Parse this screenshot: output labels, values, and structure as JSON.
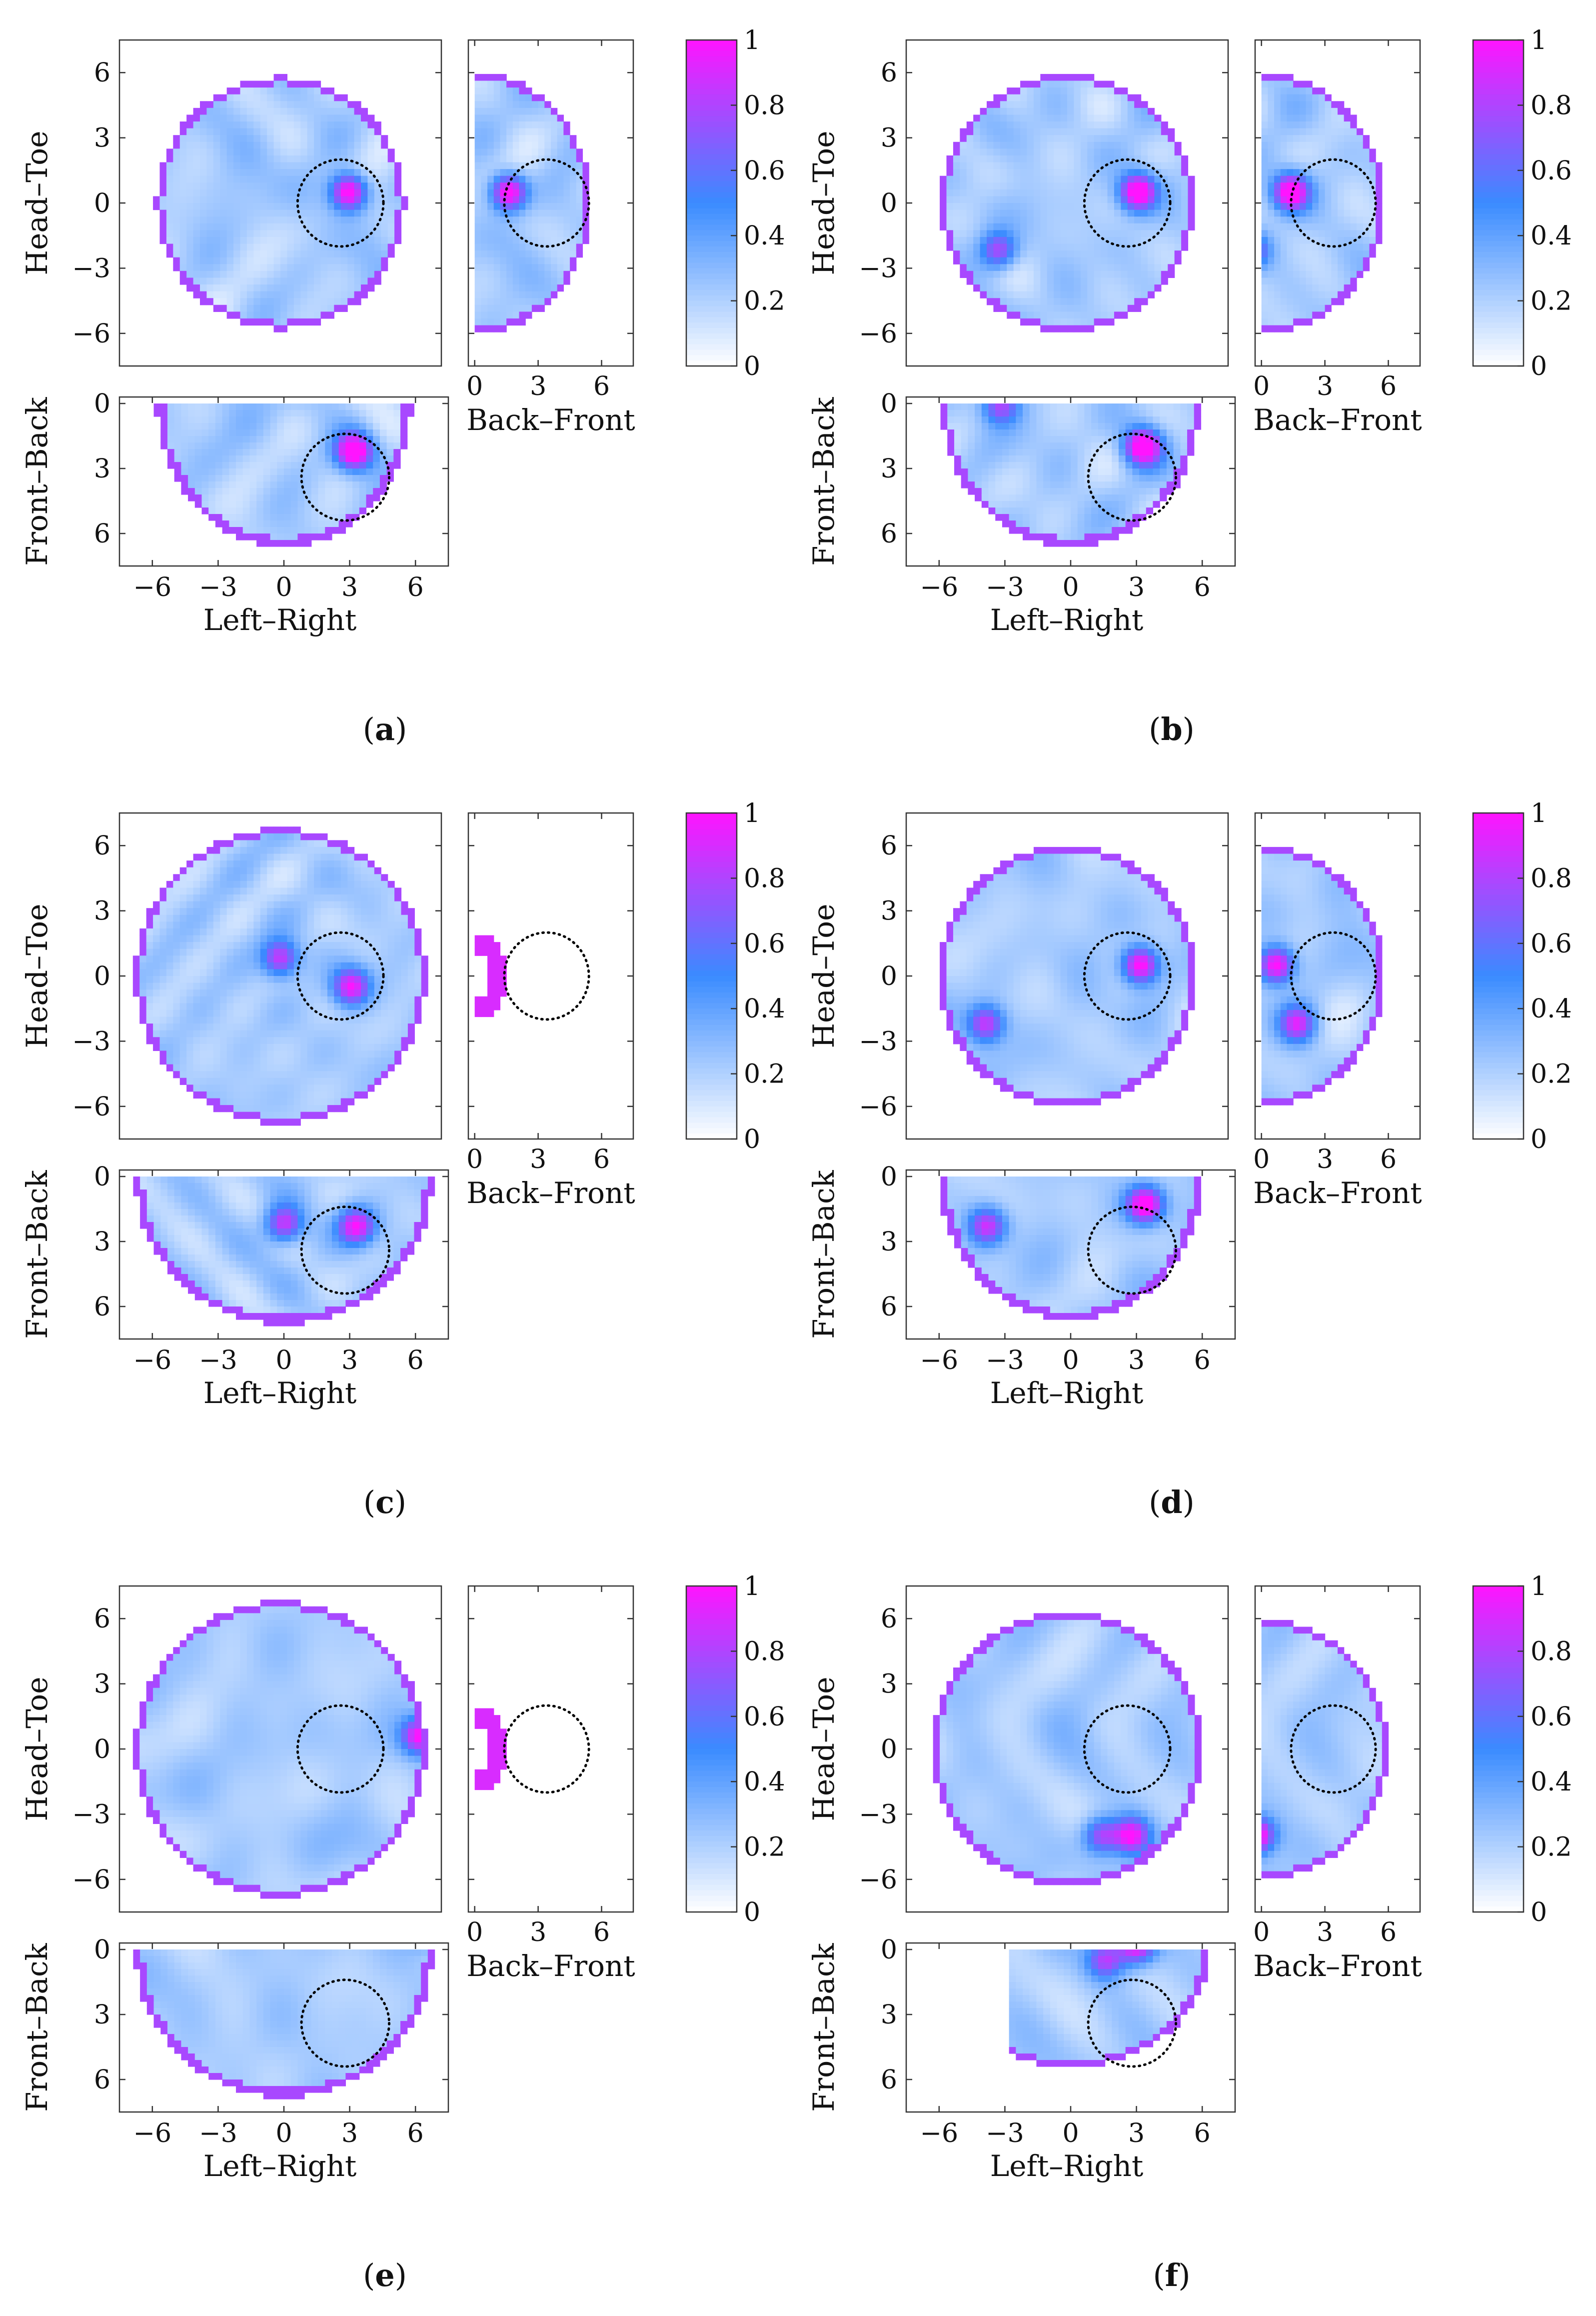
{
  "colors": {
    "low": "#ffffff",
    "mid": "#3a8bff",
    "high": "#ff14ff",
    "boundary": "#7752ff",
    "frame": "#333333"
  },
  "chart_data": {
    "type": "heatmap",
    "description_units": "cm",
    "view_labels": {
      "head_toe_ylabel": "Head–Toe",
      "back_front_xlabel": "Back–Front",
      "front_back_ylabel": "Front–Back",
      "left_right_xlabel": "Left–Right"
    },
    "axes": {
      "left_right_ticks": [
        "−6",
        "−3",
        "0",
        "3",
        "6"
      ],
      "head_toe_ticks": [
        "6",
        "3",
        "0",
        "−3",
        "−6"
      ],
      "back_front_ticks": [
        "0",
        "3",
        "6"
      ],
      "front_back_ticks": [
        "0",
        "3",
        "6"
      ],
      "lr_range": [
        -7.5,
        7.5
      ],
      "ht_range": [
        -7.5,
        7.5
      ],
      "bf_range": [
        -0.3,
        7.5
      ],
      "fb_range": [
        -0.3,
        7.5
      ]
    },
    "colorbar": {
      "ticks": [
        "1",
        "0.8",
        "0.6",
        "0.4",
        "0.2",
        "0"
      ],
      "range": [
        0,
        1
      ]
    },
    "target_marker": {
      "lr": 2.8,
      "ht": 0.0,
      "depth": 3.4,
      "radius": 2.0,
      "style": "dotted circle"
    },
    "panels": [
      {
        "label": "(a)",
        "letter": "a",
        "axial_radius": 5.8,
        "bf_max": 5.5,
        "fb_max": 6.6,
        "side_mode": "half",
        "blob_seed": 11,
        "hotspots": [
          {
            "lr": 3.2,
            "ht": 0.5,
            "depth": 3.9,
            "v": 0.95
          }
        ]
      },
      {
        "label": "(b)",
        "letter": "b",
        "axial_radius": 5.9,
        "bf_max": 5.8,
        "fb_max": 6.6,
        "side_mode": "half",
        "blob_seed": 23,
        "hotspots": [
          {
            "lr": 3.3,
            "ht": 0.5,
            "depth": 3.7,
            "v": 0.95
          },
          {
            "lr": -3.2,
            "ht": -2.2,
            "depth": 1.8,
            "v": 0.6
          }
        ]
      },
      {
        "label": "(c)",
        "letter": "c",
        "axial_radius": 6.8,
        "bf_max": 1.5,
        "fb_max": 6.8,
        "side_mode": "ring",
        "blob_seed": 37,
        "hotspots": [
          {
            "lr": 0.0,
            "ht": 0.8,
            "depth": 3.9,
            "v": 0.7
          },
          {
            "lr": 3.3,
            "ht": -0.5,
            "depth": 4.0,
            "v": 0.75
          }
        ]
      },
      {
        "label": "(d)",
        "letter": "d",
        "axial_radius": 6.0,
        "bf_max": 5.8,
        "fb_max": 6.6,
        "side_mode": "half",
        "blob_seed": 41,
        "hotspots": [
          {
            "lr": 3.4,
            "ht": 0.5,
            "depth": 3.0,
            "v": 0.9
          },
          {
            "lr": -3.8,
            "ht": -2.2,
            "depth": 4.0,
            "v": 0.65
          }
        ]
      },
      {
        "label": "(e)",
        "letter": "e",
        "axial_radius": 6.8,
        "bf_max": 1.5,
        "fb_max": 6.8,
        "side_mode": "ring",
        "blob_seed": 53,
        "hotspots": [
          {
            "lr": 6.5,
            "ht": 0.6,
            "depth": 0.5,
            "v": 0.8
          }
        ]
      },
      {
        "label": "(f)",
        "letter": "f",
        "axial_radius": 6.3,
        "bf_max": 6.0,
        "fb_max": 5.4,
        "fb_lr_min": -2.7,
        "side_mode": "half",
        "blob_seed": 67,
        "hotspots": [
          {
            "lr": 3.0,
            "ht": -4.0,
            "depth": 1.5,
            "v": 0.8
          },
          {
            "lr": 1.6,
            "ht": -4.0,
            "depth": 2.2,
            "v": 0.6
          }
        ]
      }
    ]
  }
}
